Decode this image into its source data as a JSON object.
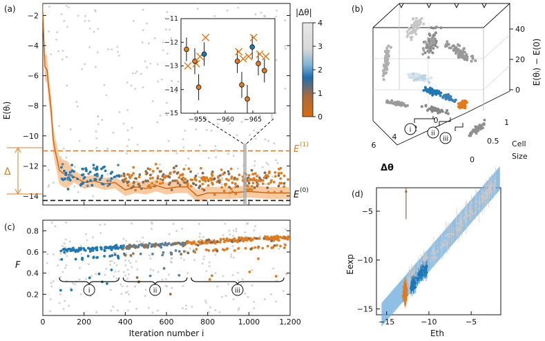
{
  "colors": {
    "gray": "#c8c8c8",
    "blue": "#1f77b4",
    "orange": "#e07b20",
    "dark": "#222222",
    "band": "#f6b880",
    "fit_band": "#6aa9dc"
  },
  "chart_data": [
    {
      "id": "a",
      "type": "scatter",
      "panel_label": "(a)",
      "xlabel": "",
      "ylabel": "E(θᵢ)",
      "xlim": [
        0,
        1200
      ],
      "ylim": [
        -14.6,
        -1.2
      ],
      "yticks": [
        -14,
        -12,
        -10,
        -8,
        -6,
        -4,
        -2
      ],
      "ytick_labels": [
        "−14",
        "−12",
        "−10",
        "−8",
        "−6",
        "−4",
        "−2"
      ],
      "hlines": [
        {
          "name": "E(0)",
          "label": "E",
          "sup": "(0)",
          "value": -14.3,
          "style": "dashed-black"
        },
        {
          "name": "E(1)",
          "label": "E",
          "sup": "(1)",
          "value": -11.0,
          "style": "dashed-orange"
        }
      ],
      "delta_label": "Δ",
      "zoom_window": [
        955,
        968
      ],
      "running_mean": {
        "x": [
          0,
          10,
          20,
          30,
          40,
          50,
          60,
          70,
          80,
          90,
          100,
          120,
          150,
          200,
          250,
          300,
          350,
          400,
          450,
          500,
          550,
          600,
          650,
          700,
          750,
          800,
          900,
          1000,
          1100,
          1200
        ],
        "y": [
          -1.8,
          -5.4,
          -5.6,
          -7.0,
          -8.2,
          -10.2,
          -11.0,
          -11.6,
          -12.3,
          -12.4,
          -12.5,
          -12.6,
          -12.7,
          -13.1,
          -13.0,
          -13.2,
          -13.1,
          -13.6,
          -13.4,
          -13.5,
          -13.3,
          -13.5,
          -13.4,
          -13.4,
          -14.0,
          -13.8,
          -13.8,
          -13.7,
          -13.8,
          -13.8
        ]
      },
      "colorbar": {
        "label": "|Δθ|",
        "ticks": [
          0,
          1,
          2,
          3,
          4
        ],
        "tick_labels": [
          "0",
          "1",
          "2",
          "3",
          "4"
        ],
        "range": [
          0,
          4
        ]
      }
    },
    {
      "id": "a-inset",
      "type": "errorbar",
      "xlim": [
        -952,
        -969
      ],
      "ylim": [
        -15,
        -11.2
      ],
      "xticks": [
        -955,
        -960,
        -965
      ],
      "xtick_labels": [
        "−955",
        "−960",
        "−965"
      ],
      "yticks": [
        -11,
        -12,
        -13,
        -14,
        -15
      ],
      "ytick_labels": [
        "−11",
        "−12",
        "−13",
        "−14",
        "−15"
      ],
      "points": [
        {
          "x": -953.0,
          "y": -12.3,
          "err": 0.5,
          "c": "orange",
          "cross": -13.0
        },
        {
          "x": -954.5,
          "y": -12.8,
          "err": 0.55,
          "c": "orange",
          "cross": -12.9
        },
        {
          "x": -955.2,
          "y": -13.9,
          "err": 0.55,
          "c": "orange",
          "cross": -12.6
        },
        {
          "x": -956.2,
          "y": -12.5,
          "err": 0.5,
          "c": "blue",
          "cross": -11.8
        },
        {
          "x": -962.2,
          "y": -12.8,
          "err": 0.5,
          "c": "orange",
          "cross": -12.4
        },
        {
          "x": -963.0,
          "y": -13.8,
          "err": 0.55,
          "c": "orange",
          "cross": -12.7
        },
        {
          "x": -964.0,
          "y": -14.4,
          "err": 0.6,
          "c": "orange",
          "cross": -12.6
        },
        {
          "x": -964.9,
          "y": -12.2,
          "err": 0.5,
          "c": "blue",
          "cross": -11.8
        },
        {
          "x": -966.0,
          "y": -12.9,
          "err": 0.5,
          "c": "orange",
          "cross": -12.5
        },
        {
          "x": -967.1,
          "y": -13.2,
          "err": 0.5,
          "c": "orange",
          "cross": -12.6
        }
      ]
    },
    {
      "id": "b",
      "type": "scatter3d",
      "panel_label": "(b)",
      "xlabel": "Δθ",
      "ylabel": "Cell Size",
      "zlabel": "E(θᵢ) − E(0)",
      "xticks": [
        6,
        4,
        2,
        0
      ],
      "xtick_labels": [
        "6",
        "4",
        "2",
        "0"
      ],
      "yticks": [
        0,
        0.5,
        1
      ],
      "ytick_labels": [
        "0",
        "0.5",
        "1"
      ],
      "zticks": [
        0,
        20,
        40
      ],
      "ztick_labels": [
        "0",
        "20",
        "40"
      ],
      "clusters": [
        "i",
        "ii",
        "iii"
      ]
    },
    {
      "id": "c",
      "type": "scatter",
      "panel_label": "(c)",
      "xlabel": "Iteration number i",
      "ylabel": "F",
      "xlim": [
        0,
        1200
      ],
      "ylim": [
        0,
        0.9
      ],
      "xticks": [
        0,
        200,
        400,
        600,
        800,
        1000,
        1200
      ],
      "xtick_labels": [
        "0",
        "200",
        "400",
        "600",
        "800",
        "1,000",
        "1,200"
      ],
      "yticks": [
        0.2,
        0.4,
        0.6,
        0.8
      ],
      "ytick_labels": [
        "0.2",
        "0.4",
        "0.6",
        "0.8"
      ],
      "brace_regions": [
        {
          "label": "i",
          "from": 80,
          "to": 370
        },
        {
          "label": "ii",
          "from": 390,
          "to": 700
        },
        {
          "label": "iii",
          "from": 720,
          "to": 1170
        }
      ]
    },
    {
      "id": "d",
      "type": "scatter",
      "panel_label": "(d)",
      "xlabel": "Eth",
      "ylabel": "Eexp",
      "xlim": [
        -16.2,
        -1.5
      ],
      "ylim": [
        -15.6,
        -2.6
      ],
      "xticks": [
        -15,
        -10,
        -5
      ],
      "xtick_labels": [
        "−15",
        "−10",
        "−5"
      ],
      "yticks": [
        -15,
        -10,
        -5
      ],
      "ytick_labels": [
        "−15",
        "−10",
        "−5"
      ],
      "fit_line": {
        "slope": 1.0,
        "intercept": 0.0,
        "band": 1.2
      }
    }
  ]
}
